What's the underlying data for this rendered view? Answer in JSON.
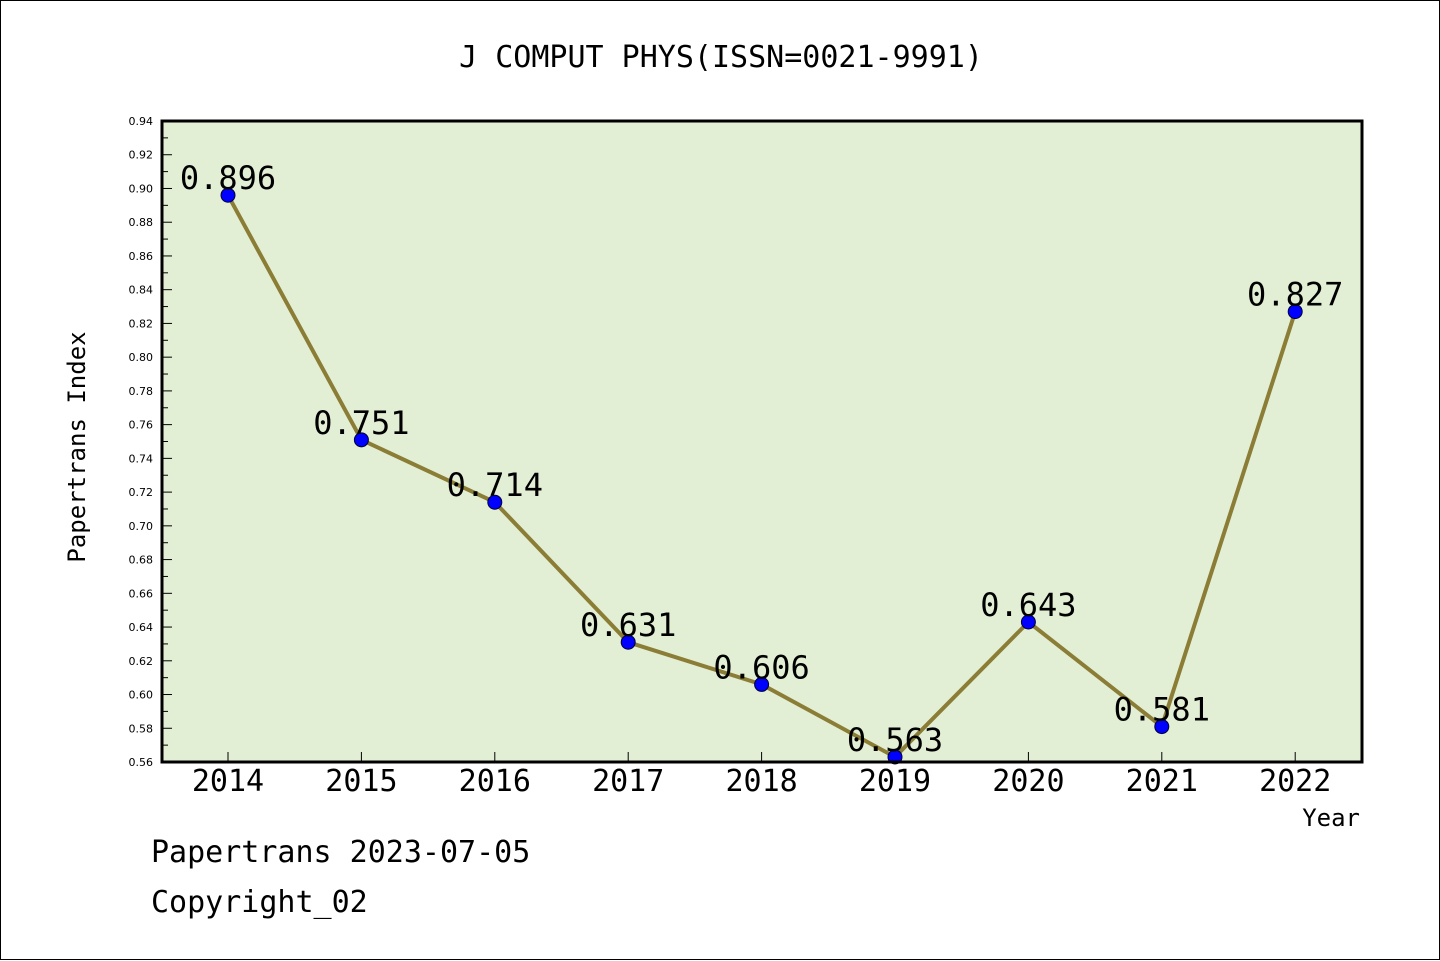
{
  "chart_data": {
    "type": "line",
    "title": "J COMPUT PHYS(ISSN=0021-9991)",
    "xlabel": "Year",
    "ylabel": "Papertrans Index",
    "categories": [
      "2014",
      "2015",
      "2016",
      "2017",
      "2018",
      "2019",
      "2020",
      "2021",
      "2022"
    ],
    "values": [
      0.896,
      0.751,
      0.714,
      0.631,
      0.606,
      0.563,
      0.643,
      0.581,
      0.827
    ],
    "data_labels": [
      "0.896",
      "0.751",
      "0.714",
      "0.631",
      "0.606",
      "0.563",
      "0.643",
      "0.581",
      "0.827"
    ],
    "ylim": [
      0.56,
      0.94
    ],
    "yticks": [
      "0.56",
      "0.58",
      "0.60",
      "0.62",
      "0.64",
      "0.66",
      "0.68",
      "0.70",
      "0.72",
      "0.74",
      "0.76",
      "0.78",
      "0.80",
      "0.82",
      "0.84",
      "0.86",
      "0.88",
      "0.90",
      "0.92",
      "0.94"
    ],
    "grid": false,
    "colors": {
      "plot_background": "#e2efd5",
      "line": "#8b7d35",
      "marker": "#0000ff",
      "axis": "#000000"
    }
  },
  "footer": {
    "line1": "Papertrans 2023-07-05",
    "line2": "Copyright_02"
  }
}
